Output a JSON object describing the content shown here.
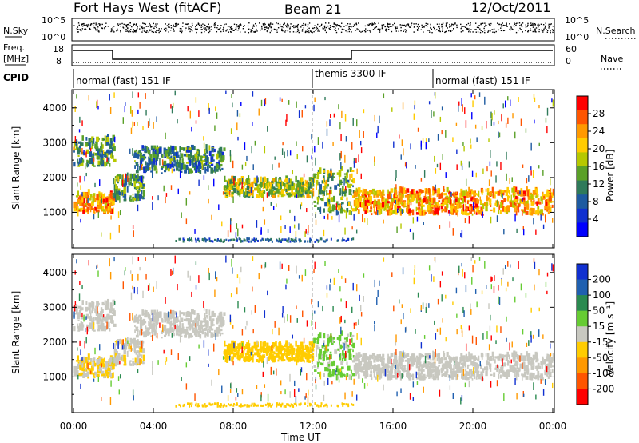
{
  "header": {
    "radar": "Fort Hays West (fitACF)",
    "beam": "Beam 21",
    "date": "12/Oct/2011"
  },
  "nsky_panel": {
    "left_label": "N.Sky",
    "right_label": "N.Search",
    "y_top_left": "10^5",
    "y_bottom_left": "10^0",
    "y_top_right": "10^5",
    "y_bottom_right": "10^0"
  },
  "freq_panel": {
    "label_line1": "Freq.",
    "label_line2": "[MHz]",
    "left_ticks": [
      "18",
      "8"
    ],
    "right_label": "Nave",
    "right_ticks": [
      "60",
      "0"
    ]
  },
  "cpid": {
    "label": "CPID",
    "segments": [
      {
        "text": "normal (fast) 151 IF",
        "start_hour": 0
      },
      {
        "text": "themis 3300 IF",
        "start_hour": 12
      },
      {
        "text": "normal (fast) 151 IF",
        "start_hour": 18
      }
    ]
  },
  "panels": {
    "ylabel": "Slant Range [km]",
    "yticks": [
      "1000",
      "2000",
      "3000",
      "4000"
    ],
    "xlabel": "Time UT",
    "xticks": [
      "00:00",
      "04:00",
      "08:00",
      "12:00",
      "16:00",
      "20:00",
      "00:00"
    ]
  },
  "power_colorbar": {
    "label": "Power [dB]",
    "ticks": [
      "28",
      "24",
      "20",
      "16",
      "12",
      "8",
      "4"
    ],
    "colors": [
      "#ff0000",
      "#ff5500",
      "#ff9900",
      "#ffcc00",
      "#b6c800",
      "#5aa028",
      "#2f7a5a",
      "#1e5aa0",
      "#1030d0",
      "#0000ff"
    ]
  },
  "velocity_colorbar": {
    "label": "Velocity [m s⁻¹]",
    "ticks": [
      "200",
      "100",
      "50",
      "15",
      "-15",
      "-50",
      "-100",
      "-200"
    ],
    "colors": [
      "#1030d0",
      "#2060b0",
      "#2a8a50",
      "#66cc33",
      "#c8c8c0",
      "#ffcc00",
      "#ff9900",
      "#ff5500",
      "#ff0000"
    ]
  },
  "chart_data": {
    "type": "heatmap",
    "x_range_hours": [
      0,
      24
    ],
    "y_range_km": [
      0,
      4500
    ],
    "power_scale_db": [
      0,
      30
    ],
    "velocity_scale": [
      -250,
      250
    ],
    "echo_regions": [
      {
        "hours": [
          0,
          2
        ],
        "range_km": [
          950,
          1500
        ],
        "power_db": 22,
        "velocity": -30
      },
      {
        "hours": [
          0,
          2
        ],
        "range_km": [
          2300,
          3100
        ],
        "power_db": 12,
        "velocity": 0
      },
      {
        "hours": [
          2,
          3.5
        ],
        "range_km": [
          1300,
          2000
        ],
        "power_db": 12,
        "velocity": -15
      },
      {
        "hours": [
          3,
          7.5
        ],
        "range_km": [
          2100,
          2800
        ],
        "power_db": 10,
        "velocity": 0
      },
      {
        "hours": [
          7.5,
          12
        ],
        "range_km": [
          1400,
          1900
        ],
        "power_db": 16,
        "velocity": -60
      },
      {
        "hours": [
          12,
          14
        ],
        "range_km": [
          900,
          2200
        ],
        "power_db": 14,
        "velocity": 40
      },
      {
        "hours": [
          14,
          24
        ],
        "range_km": [
          900,
          1600
        ],
        "power_db": 22,
        "velocity": 5
      }
    ]
  }
}
